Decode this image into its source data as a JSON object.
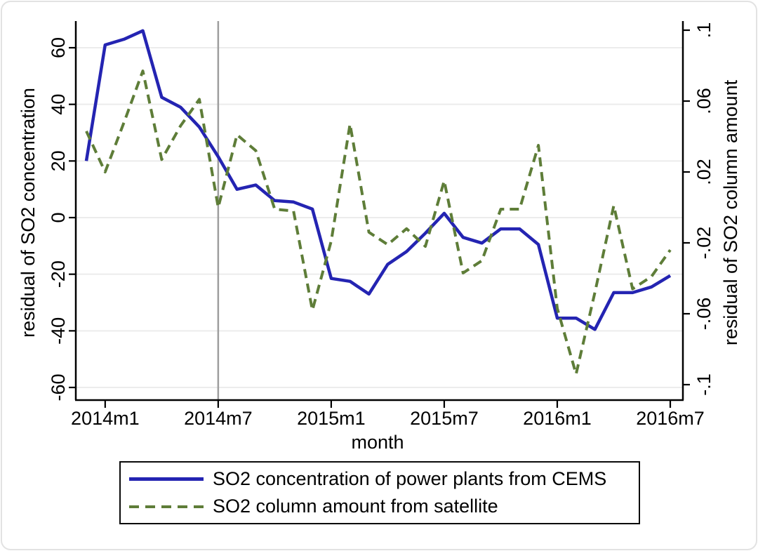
{
  "chart_data": {
    "type": "line",
    "title": "",
    "xlabel": "month",
    "ylabel_left": "residual of SO2 concentration",
    "ylabel_right": "residual of SO2 column amount",
    "categories": [
      "2013m12",
      "2014m1",
      "2014m2",
      "2014m3",
      "2014m4",
      "2014m5",
      "2014m6",
      "2014m7",
      "2014m8",
      "2014m9",
      "2014m10",
      "2014m11",
      "2014m12",
      "2015m1",
      "2015m2",
      "2015m3",
      "2015m4",
      "2015m5",
      "2015m6",
      "2015m7",
      "2015m8",
      "2015m9",
      "2015m10",
      "2015m11",
      "2015m12",
      "2016m1",
      "2016m2",
      "2016m3",
      "2016m4",
      "2016m5",
      "2016m6",
      "2016m7"
    ],
    "x_tick_labels": [
      "2014m1",
      "2014m7",
      "2015m1",
      "2015m7",
      "2016m1",
      "2016m7"
    ],
    "x_tick_indices": [
      1,
      7,
      13,
      19,
      25,
      31
    ],
    "ylim_left": [
      -60,
      60
    ],
    "ylim_right": [
      -0.1,
      0.1
    ],
    "y_ticks_left": [
      60,
      40,
      20,
      0,
      -20,
      -40,
      -60
    ],
    "y_tick_labels_left": [
      "60",
      "40",
      "20",
      "0",
      "-20",
      "-40",
      "-60"
    ],
    "y_ticks_right": [
      0.1,
      0.06,
      0.02,
      -0.02,
      -0.06,
      -0.1
    ],
    "y_tick_labels_right": [
      ".1",
      ".06",
      ".02",
      "-.02",
      "-.06",
      "-.1"
    ],
    "grid": true,
    "legend_position": "bottom",
    "reference_line": {
      "x": "2014m7"
    },
    "series": [
      {
        "name": "SO2 concentration of power plants from CEMS",
        "axis": "left",
        "line_style": "solid",
        "color": "#2424b2",
        "values": [
          20,
          61,
          63,
          66,
          42.5,
          39,
          32,
          21.5,
          10,
          11.5,
          6,
          5.5,
          3,
          -21.5,
          -22.5,
          -27,
          -16.5,
          -12,
          -5.5,
          1.5,
          -7,
          -9,
          -4,
          -4,
          -9.5,
          -35.5,
          -35.5,
          -39.5,
          -26.5,
          -26.5,
          -24.5,
          -20.5
        ]
      },
      {
        "name": "SO2 column amount from satellite",
        "axis": "right",
        "line_style": "dashed",
        "color": "#5e7d38",
        "values": [
          0.043,
          0.02,
          0.048,
          0.077,
          0.027,
          0.046,
          0.061,
          0.0,
          0.041,
          0.032,
          -0.001,
          -0.002,
          -0.058,
          -0.019,
          0.047,
          -0.014,
          -0.021,
          -0.012,
          -0.022,
          0.015,
          -0.037,
          -0.03,
          -0.001,
          -0.001,
          0.035,
          -0.057,
          -0.094,
          -0.048,
          0.001,
          -0.046,
          -0.039,
          -0.024
        ]
      }
    ]
  },
  "colors": {
    "background": "#ffffff",
    "grid_line": "#ececec",
    "axis": "#000000",
    "reference_line": "#9e9e9e",
    "legend_border": "#0a0a0a"
  }
}
